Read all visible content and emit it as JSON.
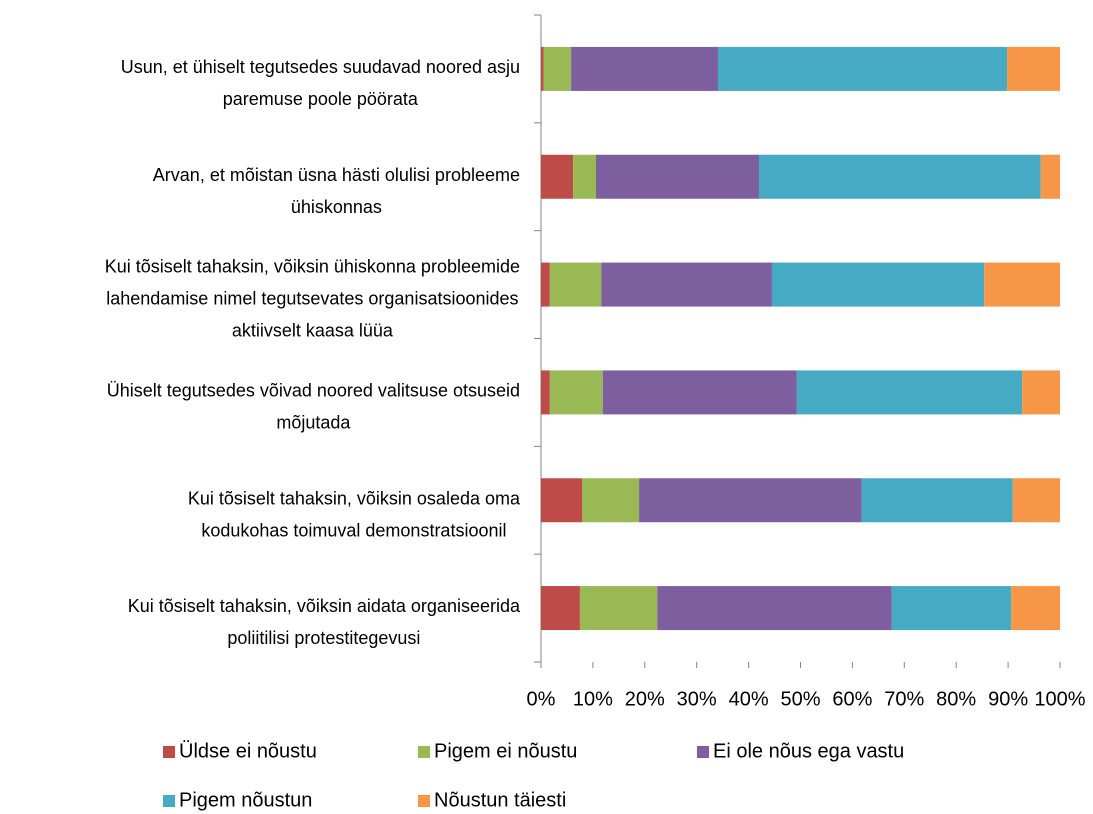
{
  "chart_data": {
    "type": "stacked_barh",
    "categories": [
      "Usun, et ühiselt tegutsedes suudavad noored asju\nparemuse poole pöörata",
      "Arvan, et mõistan üsna hästi olulisi probleeme\nühiskonnas",
      "Kui tõsiselt tahaksin, võiksin ühiskonna probleemide\nlahendamise nimel tegutsevates organisatsioonides\naktiivselt kaasa lüüa",
      "Ühiselt tegutsedes võivad noored valitsuse otsuseid\nmõjutada",
      "Kui tõsiselt tahaksin, võiksin osaleda oma\nkodukohas toimuval demonstratsioonil",
      "Kui tõsiselt tahaksin, võiksin aidata organiseerida\npoliitilisi protestitegevusi"
    ],
    "series": [
      {
        "name": "Üldse ei nõustu",
        "color": "#be4b48",
        "values": [
          0.5,
          6.2,
          1.7,
          1.7,
          7.9,
          7.5
        ]
      },
      {
        "name": "Pigem ei nõustu",
        "color": "#98b954",
        "values": [
          5.3,
          4.4,
          9.9,
          10.2,
          11.0,
          14.9
        ]
      },
      {
        "name": "Ei ole nõus ega  vastu",
        "color": "#7d5fa0",
        "values": [
          28.3,
          31.4,
          32.9,
          37.4,
          42.9,
          45.2
        ]
      },
      {
        "name": "Pigem nõustun",
        "color": "#46aac5",
        "values": [
          55.7,
          54.3,
          40.9,
          43.4,
          29.1,
          23.0
        ]
      },
      {
        "name": "Nõustun täiesti",
        "color": "#f79646",
        "values": [
          10.2,
          3.7,
          14.6,
          7.3,
          9.1,
          9.4
        ]
      }
    ],
    "xlim": [
      0,
      100
    ],
    "xticks": [
      {
        "value": 0,
        "label": "0%"
      },
      {
        "value": 10,
        "label": "10%"
      },
      {
        "value": 20,
        "label": "20%"
      },
      {
        "value": 30,
        "label": "30%"
      },
      {
        "value": 40,
        "label": "40%"
      },
      {
        "value": 50,
        "label": "50%"
      },
      {
        "value": 60,
        "label": "60%"
      },
      {
        "value": 70,
        "label": "70%"
      },
      {
        "value": 80,
        "label": "80%"
      },
      {
        "value": 90,
        "label": "90%"
      },
      {
        "value": 100,
        "label": "100%"
      }
    ],
    "legend": "bottom"
  }
}
